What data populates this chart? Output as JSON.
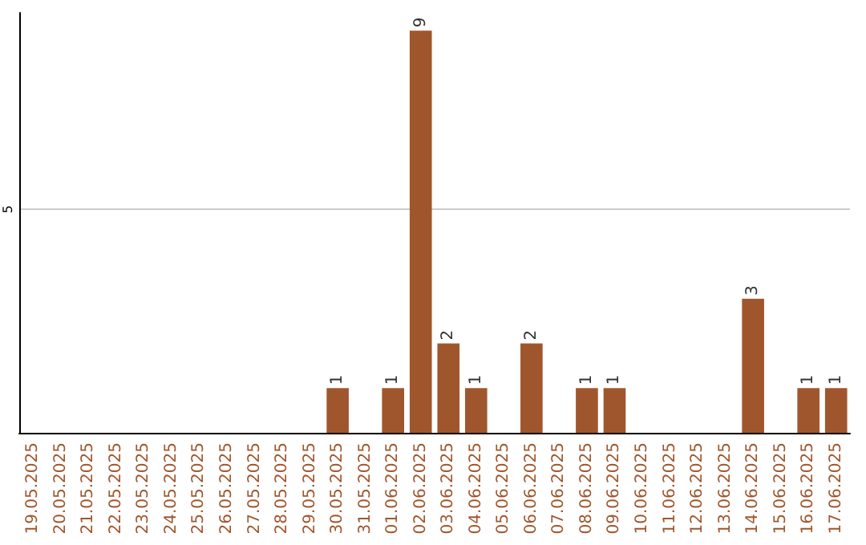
{
  "chart_data": {
    "type": "bar",
    "categories": [
      "19.05.2025",
      "20.05.2025",
      "21.05.2025",
      "22.05.2025",
      "23.05.2025",
      "24.05.2025",
      "25.05.2025",
      "26.05.2025",
      "27.05.2025",
      "28.05.2025",
      "29.05.2025",
      "30.05.2025",
      "31.05.2025",
      "01.06.2025",
      "02.06.2025",
      "03.06.2025",
      "04.06.2025",
      "05.06.2025",
      "06.06.2025",
      "07.06.2025",
      "08.06.2025",
      "09.06.2025",
      "10.06.2025",
      "11.06.2025",
      "12.06.2025",
      "13.06.2025",
      "14.06.2025",
      "15.06.2025",
      "16.06.2025",
      "17.06.2025"
    ],
    "values": [
      0,
      0,
      0,
      0,
      0,
      0,
      0,
      0,
      0,
      0,
      0,
      1,
      0,
      1,
      9,
      2,
      1,
      0,
      2,
      0,
      1,
      1,
      0,
      0,
      0,
      0,
      3,
      0,
      1,
      1
    ],
    "value_labels": [
      null,
      null,
      null,
      null,
      null,
      null,
      null,
      null,
      null,
      null,
      null,
      "1",
      null,
      "1",
      "9",
      "2",
      "1",
      null,
      "2",
      null,
      "1",
      "1",
      null,
      null,
      null,
      null,
      "3",
      null,
      "1",
      "1"
    ],
    "color": "#a0562c",
    "ylim": [
      0,
      9.4
    ],
    "yticks": [
      5
    ],
    "grid": "y"
  }
}
